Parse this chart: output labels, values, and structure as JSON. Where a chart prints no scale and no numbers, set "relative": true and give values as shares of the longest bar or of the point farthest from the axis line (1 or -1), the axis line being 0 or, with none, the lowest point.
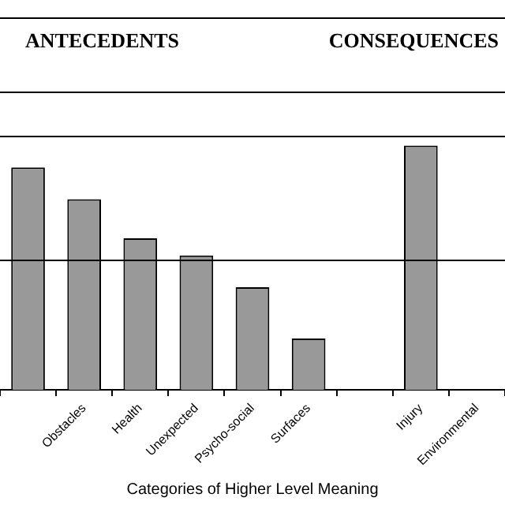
{
  "chart_data": {
    "type": "bar",
    "relative": true,
    "xlabel": "Categories of Higher Level Meaning",
    "annotations": [
      "ANTECEDENTS",
      "CONSEQUENCES"
    ],
    "categories": [
      null,
      "Obstacles",
      "Health",
      "Unexpected",
      "Psycho-social",
      "Surfaces",
      null,
      "Injury",
      "Environmental"
    ],
    "values": [
      0.91,
      0.78,
      0.62,
      0.55,
      0.42,
      0.21,
      null,
      1,
      null
    ],
    "color": "#999999",
    "ref_lines": [
      {
        "axis": "y",
        "value": 0.53,
        "color": "#000000"
      }
    ],
    "grid": false,
    "legend": false
  }
}
